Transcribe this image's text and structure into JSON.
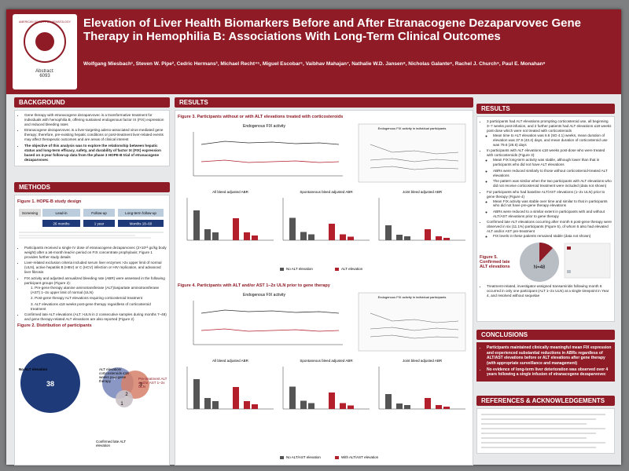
{
  "header": {
    "title": "Elevation of Liver Health Biomarkers Before and After Etranacogene Dezaparvovec Gene Therapy in Hemophilia B: Associations With Long-Term Clinical Outcomes",
    "authors": "Wolfgang Miesbach¹, Steven W. Pipe², Cedric Hermans³, Michael Recht⁴⁵, Miguel Escobar⁶, Vaibhav Mahajan⁷, Nathalie W.D. Jansen⁸, Nicholas Galante⁹, Rachel J. Church⁹, Paul E. Monahan⁹",
    "abstract_label": "Abstract:",
    "abstract_number": "6093",
    "society": "AMERICAN SOCIETY OF HEMATOLOGY"
  },
  "background": {
    "heading": "BACKGROUND",
    "bullets": [
      "Gene therapy with etranacogene dezaparvovec is a transformative treatment for individuals with hemophilia B, offering sustained endogenous factor IX (FIX) expression and reduced bleeding rates",
      "Etranacogene dezaparvovec is a liver-targeting adeno-associated virus-mediated gene therapy; therefore, pre-existing hepatic conditions or post-treatment liver-related events may affect therapeutic outcomes and are areas of clinical interest",
      "The objective of this analysis was to explore the relationship between hepatic status and long-term efficacy, safety, and durability of factor IX (FIX) expression based on 4-year follow-up data from the phase 3 HOPE-B trial of etranacogene dezaparvovec"
    ]
  },
  "methods": {
    "heading": "METHODS",
    "figure1_title": "Figure 1. HOPE-B study design",
    "phases": [
      "Screening",
      "Lead-in",
      "Follow-up",
      "Long-term follow-up"
    ],
    "durations": [
      "26 months",
      "1 year",
      "Months 18–60"
    ],
    "bullets": [
      "Participants received a single IV dose of etranacogene dezaparvovec (2×10¹³ gc/kg body weight) after a ≥6-month lead-in period on FIX concentrate prophylaxis; Figure 1 provides further study details",
      "Liver-related exclusion criteria included serum liver enzymes >2x upper limit of normal (ULN), active hepatitis B (HBV) or C (HCV) infection or HIV replication, and advanced liver fibrosis",
      "FIX activity and adjusted annualized bleeding rate (ABR) were assessed in the following participant groups (Figure 2):",
      "Confirmed late ALT elevations (ALT >ULN in 2 consecutive samples during months 7–48) and gene therapy-related ALT elevations are also reported (Figure 2)"
    ],
    "groups": [
      "1. Pre-gene therapy alanine aminotransferase (ALT)/aspartate aminotransferase (AST) 1–2x upper limit of normal (ULN)",
      "2. Post-gene therapy ALT elevations requiring corticosteroid treatment",
      "3. ALT elevations ≤18 weeks post-gene therapy regardless of corticosteroid treatment"
    ],
    "figure2_title": "Figure 2. Distribution of participants",
    "venn_labels": [
      "No ALT elevation",
      "ALT elevation/ corticosteroids ≤18 weeks post-gene therapy",
      "Pre-treatment ALT and/or AST 1–2x ULN",
      "Confirmed late ALT elevation"
    ],
    "venn_counts": [
      "38",
      "7",
      "3",
      "2",
      "1"
    ]
  },
  "results": {
    "heading": "RESULTS",
    "figure3_title": "Figure 3. Participants without or with ALT elevations treated with corticosteroids",
    "figure4_title": "Figure 4. Participants with ALT and/or AST 1–2x ULN prior to gene therapy",
    "panel_titles": [
      "Endogenous FIX activity",
      "Endogenous FIX activity in individual participants",
      "All bleed adjusted ABR",
      "Spontaneous bleed adjusted ABR",
      "Joint bleed adjusted ABR"
    ],
    "legend3": [
      "No ALT elevation",
      "ALT elevation"
    ],
    "legend4": [
      "No ALT/AST elevation",
      "With ALT/AST elevation"
    ]
  },
  "results_right": {
    "heading": "RESULTS",
    "bullets": [
      "3 participants had ALT elevations prompting corticosteroid use, all beginning 3–7 weeks post-infusion, and 2 further patients had ALT elevations ≤18 weeks post-dose which were not treated with corticosteroids",
      "In participants with ALT elevations ≤18 weeks post-dose who were treated with corticosteroids (Figure 3):",
      "For participants who had baseline ALT/AST elevations (1–2x ULN) prior to gene therapy (Figure 4)",
      "Confirmed late ALT elevations occurring after month 6 post-gene therapy were observed in six (11.1%) participants (Figure 5), of whom 5 also had elevated ALT and/or AST pre-treatment",
      "Treatment-related, investigator-assigned transaminitis following month 6 occurred in only one participant (ALT 1–2x ULN) at a single timepoint in Year 4, and resolved without sequelae"
    ],
    "sub1": [
      "Mean time to ALT elevation was 6.6 (SD 4.1) weeks, mean duration of elevation was 37.9 (43.4) days, and mean duration of corticosteroid use was 79.6 (26.6) days"
    ],
    "sub2": [
      "Mean FIX long-term activity was stable, although lower than that in participants who did not have ALT elevations",
      "ABRs were reduced similarly to those without corticosteroid-treated ALT elevations",
      "The pattern was similar when the two participants with ALT elevations who did not receive corticosteroid treatment were included (data not shown)"
    ],
    "sub3": [
      "Mean FIX activity was stable over time and similar to that in participants who did not have pre-gene therapy elevations",
      "ABRs were reduced to a similar extent in participants with and without ALT/AST elevations prior to gene therapy"
    ],
    "sub4": [
      "FIX levels in these patients remained stable (data not shown)"
    ],
    "figure5_title": "Figure 5. Confirmed late ALT elevations",
    "figure5_n": "N=48"
  },
  "conclusions": {
    "heading": "CONCLUSIONS",
    "bullets": [
      "Participants maintained clinically meaningful mean FIX expression and experienced substantial reductions in ABRs regardless of ALT/AST elevations before or ALT elevations after gene therapy (with appropriate surveillance and management)",
      "No evidence of long-term liver deterioration was observed over 4 years following a single infusion of etranacogene dezaparvovec"
    ]
  },
  "references": {
    "heading": "REFERENCES & ACKNOWLEDGEMENTS"
  }
}
